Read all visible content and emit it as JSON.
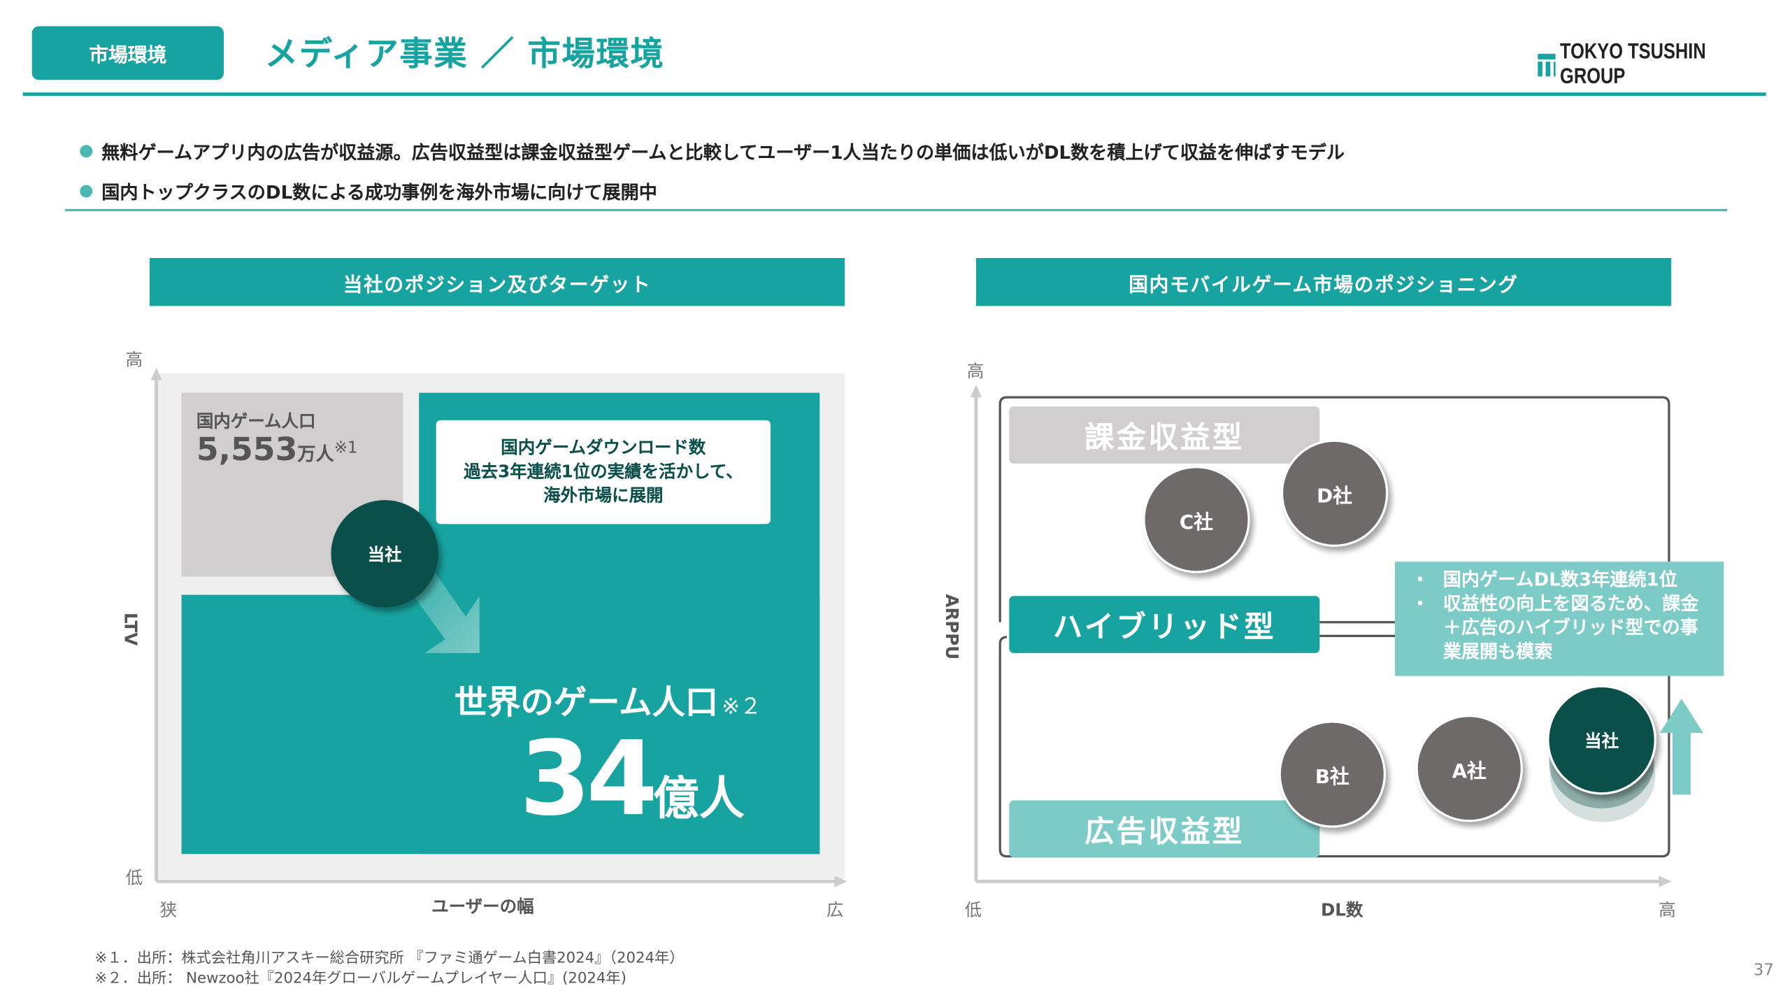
{
  "header": {
    "tag": "市場環境",
    "title": "メディア事業 ／ 市場環境",
    "logo_text": "TOKYO TSUSHIN GROUP"
  },
  "bullets": [
    "無料ゲームアプリ内の広告が収益源。広告収益型は課金収益型ゲームと比較してユーザー1人当たりの単価は低いがDL数を積上げて収益を伸ばすモデル",
    "国内トップクラスのDL数による成功事例を海外市場に向けて展開中"
  ],
  "left_panel": {
    "title": "当社のポジション及びターゲット",
    "y_high": "高",
    "y_low": "低",
    "y_label": "LTV",
    "x_low": "狭",
    "x_high": "広",
    "x_label": "ユーザーの幅",
    "domestic_label": "国内ゲーム人口",
    "domestic_value": "5,553",
    "domestic_unit": "万人",
    "domestic_note": "※1",
    "callout": [
      "国内ゲームダウンロード数",
      "過去3年連続1位の実績を活かして、",
      "海外市場に展開"
    ],
    "company": "当社",
    "world_label": "世界のゲーム人口",
    "world_note": "※２",
    "world_value": "34",
    "world_unit": "億人"
  },
  "right_panel": {
    "title": "国内モバイルゲーム市場のポジショニング",
    "y_high": "高",
    "y_label": "ARPPU",
    "x_low": "低",
    "x_label": "DL数",
    "x_high": "高",
    "segments": {
      "paid": "課金収益型",
      "hybrid": "ハイブリッド型",
      "ad": "広告収益型"
    },
    "companies": {
      "c": "C社",
      "d": "D社",
      "b": "B社",
      "a": "A社",
      "self": "当社"
    },
    "callout": [
      "国内ゲームDL数3年連続1位",
      "収益性の向上を図るため、課金＋広告のハイブリッド型での事業展開も模索"
    ]
  },
  "footnotes": [
    "※１．出所：株式会社角川アスキー総合研究所 『ファミ通ゲーム白書2024』（2024年）",
    "※２．出所： Newzoo社『2024年グローバルゲームプレイヤー人口』(2024年)"
  ],
  "page_number": "37",
  "colors": {
    "teal": "#17a3a0",
    "dark_teal": "#0b4f4a",
    "light_teal": "#7ccbc6",
    "gray": "#d0cecf",
    "circle_gray": "#6f6a6a"
  }
}
